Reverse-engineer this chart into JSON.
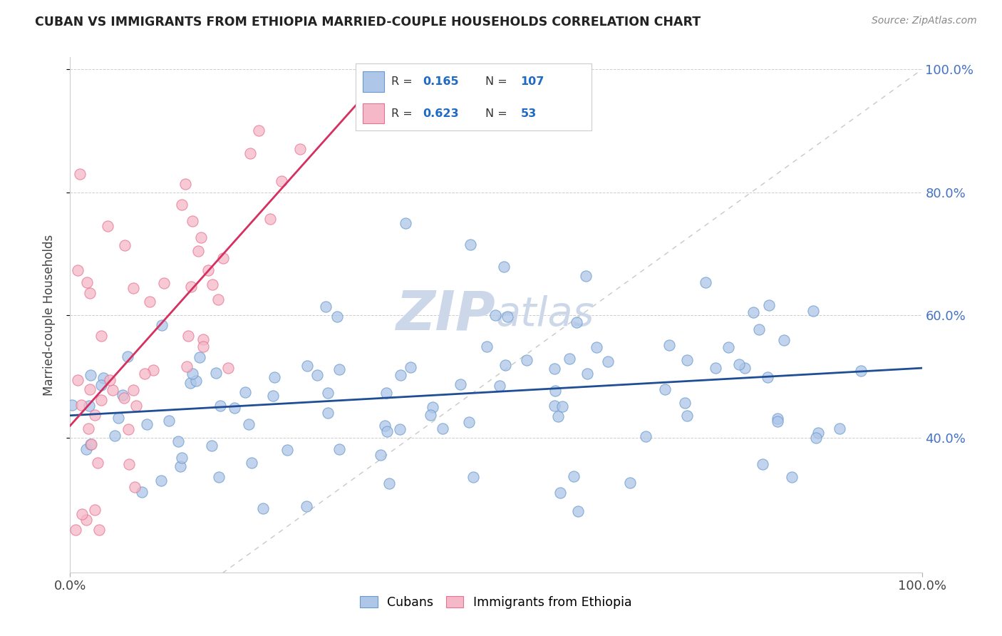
{
  "title": "CUBAN VS IMMIGRANTS FROM ETHIOPIA MARRIED-COUPLE HOUSEHOLDS CORRELATION CHART",
  "source": "Source: ZipAtlas.com",
  "ylabel": "Married-couple Households",
  "y_ticks": [
    0.4,
    0.6,
    0.8,
    1.0
  ],
  "y_tick_labels": [
    "40.0%",
    "60.0%",
    "80.0%",
    "100.0%"
  ],
  "x_tick_left": "0.0%",
  "x_tick_right": "100.0%",
  "xlim": [
    0.0,
    1.0
  ],
  "ylim": [
    0.18,
    1.02
  ],
  "cubans_R": 0.165,
  "cubans_N": 107,
  "ethiopia_R": 0.623,
  "ethiopia_N": 53,
  "cubans_color": "#aec6e8",
  "cubans_edge_color": "#6699cc",
  "ethiopia_color": "#f4b8c8",
  "ethiopia_edge_color": "#e87090",
  "cubans_line_color": "#1f4e96",
  "ethiopia_line_color": "#d63060",
  "diagonal_color": "#c8c8c8",
  "legend_cubans_label": "Cubans",
  "legend_ethiopia_label": "Immigrants from Ethiopia",
  "watermark_zip": "ZIP",
  "watermark_atlas": "atlas",
  "watermark_color": "#ccd8ea",
  "watermark_fontsize": 55
}
